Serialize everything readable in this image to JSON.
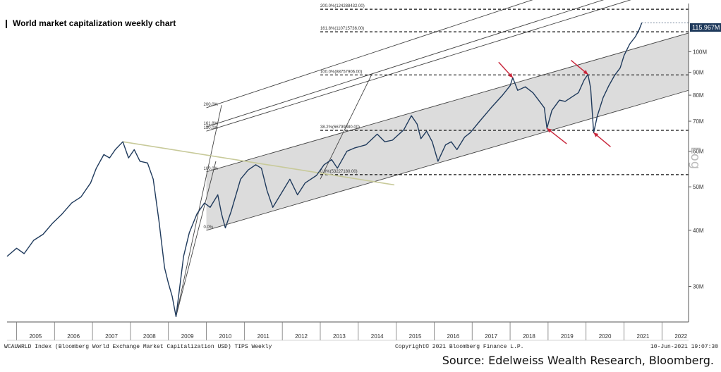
{
  "page": {
    "title": "World market capitalization weekly chart",
    "footer_left": "WCAUWRLD Index (Bloomberg World Exchange Market Capitalization USD) TIPS Weekly",
    "footer_mid": "Copyright© 2021 Bloomberg Finance L.P.",
    "footer_right": "10-Jun-2021 19:07:30",
    "source": "Source: Edelweiss Wealth Research, Bloomberg.",
    "axis_mode_label": "Log"
  },
  "chart_data": {
    "type": "line",
    "title": "World market capitalization weekly chart",
    "xlabel": "",
    "ylabel": "Log",
    "y_scale": "log",
    "ylim": [
      25000000,
      128000000
    ],
    "xlim": [
      2004.75,
      2022.7
    ],
    "x_ticks": [
      "2005",
      "2006",
      "2007",
      "2008",
      "2009",
      "2010",
      "2011",
      "2012",
      "2013",
      "2014",
      "2015",
      "2016",
      "2017",
      "2018",
      "2019",
      "2020",
      "2021",
      "2022"
    ],
    "y_ticks": [
      {
        "value": 30000000,
        "label": "30M"
      },
      {
        "value": 40000000,
        "label": "40M"
      },
      {
        "value": 50000000,
        "label": "50M"
      },
      {
        "value": 60000000,
        "label": "60M"
      },
      {
        "value": 70000000,
        "label": "70M"
      },
      {
        "value": 80000000,
        "label": "80M"
      },
      {
        "value": 90000000,
        "label": "90M"
      },
      {
        "value": 100000000,
        "label": "100M"
      }
    ],
    "last_value": {
      "value": 115967000,
      "label": "115.967M"
    },
    "series": [
      {
        "name": "WCAUWRLD Index",
        "color": "#1f3a5c",
        "points": [
          [
            2004.75,
            35000000
          ],
          [
            2005.0,
            36500000
          ],
          [
            2005.2,
            35500000
          ],
          [
            2005.45,
            38000000
          ],
          [
            2005.7,
            39200000
          ],
          [
            2005.95,
            41500000
          ],
          [
            2006.2,
            43500000
          ],
          [
            2006.45,
            46000000
          ],
          [
            2006.7,
            47500000
          ],
          [
            2006.95,
            51000000
          ],
          [
            2007.1,
            55000000
          ],
          [
            2007.3,
            59000000
          ],
          [
            2007.45,
            58000000
          ],
          [
            2007.6,
            60500000
          ],
          [
            2007.8,
            63000000
          ],
          [
            2007.95,
            58000000
          ],
          [
            2008.1,
            60500000
          ],
          [
            2008.25,
            57000000
          ],
          [
            2008.45,
            56500000
          ],
          [
            2008.6,
            52000000
          ],
          [
            2008.75,
            42000000
          ],
          [
            2008.9,
            33000000
          ],
          [
            2009.0,
            30500000
          ],
          [
            2009.1,
            28500000
          ],
          [
            2009.2,
            25700000
          ],
          [
            2009.3,
            30000000
          ],
          [
            2009.4,
            35000000
          ],
          [
            2009.55,
            39500000
          ],
          [
            2009.75,
            43500000
          ],
          [
            2009.95,
            46000000
          ],
          [
            2010.1,
            45000000
          ],
          [
            2010.3,
            48000000
          ],
          [
            2010.4,
            43500000
          ],
          [
            2010.5,
            40500000
          ],
          [
            2010.65,
            44000000
          ],
          [
            2010.9,
            52000000
          ],
          [
            2011.1,
            54500000
          ],
          [
            2011.3,
            56000000
          ],
          [
            2011.45,
            55000000
          ],
          [
            2011.6,
            49000000
          ],
          [
            2011.75,
            45000000
          ],
          [
            2011.95,
            48000000
          ],
          [
            2012.2,
            52000000
          ],
          [
            2012.4,
            48000000
          ],
          [
            2012.6,
            51000000
          ],
          [
            2012.9,
            53000000
          ],
          [
            2013.1,
            56000000
          ],
          [
            2013.3,
            57500000
          ],
          [
            2013.45,
            55000000
          ],
          [
            2013.7,
            60000000
          ],
          [
            2013.9,
            61000000
          ],
          [
            2014.2,
            62000000
          ],
          [
            2014.5,
            65500000
          ],
          [
            2014.7,
            63000000
          ],
          [
            2014.9,
            63500000
          ],
          [
            2015.2,
            67000000
          ],
          [
            2015.4,
            72000000
          ],
          [
            2015.55,
            69000000
          ],
          [
            2015.65,
            64000000
          ],
          [
            2015.8,
            66500000
          ],
          [
            2015.95,
            63000000
          ],
          [
            2016.1,
            57000000
          ],
          [
            2016.3,
            62000000
          ],
          [
            2016.45,
            63000000
          ],
          [
            2016.6,
            60500000
          ],
          [
            2016.8,
            64500000
          ],
          [
            2016.95,
            66000000
          ],
          [
            2017.2,
            70000000
          ],
          [
            2017.5,
            75000000
          ],
          [
            2017.8,
            80000000
          ],
          [
            2018.0,
            84000000
          ],
          [
            2018.07,
            87500000
          ],
          [
            2018.2,
            82000000
          ],
          [
            2018.4,
            83500000
          ],
          [
            2018.6,
            81000000
          ],
          [
            2018.75,
            78000000
          ],
          [
            2018.9,
            75000000
          ],
          [
            2018.97,
            67500000
          ],
          [
            2019.1,
            74000000
          ],
          [
            2019.3,
            78000000
          ],
          [
            2019.45,
            77500000
          ],
          [
            2019.6,
            79000000
          ],
          [
            2019.8,
            81000000
          ],
          [
            2019.95,
            86500000
          ],
          [
            2020.05,
            89000000
          ],
          [
            2020.12,
            83000000
          ],
          [
            2020.2,
            66000000
          ],
          [
            2020.3,
            72000000
          ],
          [
            2020.45,
            79000000
          ],
          [
            2020.6,
            84000000
          ],
          [
            2020.75,
            88500000
          ],
          [
            2020.9,
            92000000
          ],
          [
            2021.0,
            98000000
          ],
          [
            2021.15,
            104000000
          ],
          [
            2021.3,
            108000000
          ],
          [
            2021.4,
            112000000
          ],
          [
            2021.47,
            115967000
          ]
        ]
      },
      {
        "name": "Trend line",
        "color": "#c8ca9a",
        "points": [
          [
            2007.8,
            63000000
          ],
          [
            2014.95,
            50500000
          ]
        ]
      }
    ],
    "channel": {
      "lower": [
        [
          2010.0,
          40000000
        ],
        [
          2022.7,
          82000000
        ]
      ],
      "upper": [
        [
          2010.0,
          54000000
        ],
        [
          2022.7,
          110000000
        ]
      ],
      "fill": "#dcdcdc"
    },
    "fib_fan": [
      {
        "label": "200.0%",
        "start": [
          2010.0,
          75000000
        ],
        "end": [
          2022.7,
          170000000
        ]
      },
      {
        "label": "161.8%",
        "start": [
          2010.0,
          68000000
        ],
        "end": [
          2022.7,
          150000000
        ]
      },
      {
        "label": "150.0%",
        "start": [
          2010.0,
          66500000
        ],
        "end": [
          2022.7,
          143000000
        ]
      },
      {
        "label": "100.0%",
        "start": [
          2010.0,
          54000000
        ],
        "end": [
          2022.7,
          110000000
        ]
      },
      {
        "label": "0.0%",
        "start": [
          2010.0,
          40000000
        ],
        "end": [
          2022.7,
          82000000
        ]
      }
    ],
    "fib_levels": [
      {
        "label": "200.0%(124288432.00)",
        "value": 124288432
      },
      {
        "label": "161.8%(110715736.00)",
        "value": 110715736
      },
      {
        "label": "100.0%(88757906.00)",
        "value": 88757906
      },
      {
        "label": "38.2%(66799880.00)",
        "value": 66799880
      },
      {
        "label": "0.0%(53227180.00)",
        "value": 53227180
      }
    ],
    "annotations": [
      {
        "type": "arrow",
        "target": [
          2018.07,
          87500000
        ],
        "color": "#c8253a"
      },
      {
        "type": "arrow",
        "target": [
          2018.97,
          67500000
        ],
        "color": "#c8253a"
      },
      {
        "type": "arrow",
        "target": [
          2020.05,
          89000000
        ],
        "color": "#c8253a"
      },
      {
        "type": "arrow",
        "target": [
          2020.2,
          66000000
        ],
        "color": "#c8253a"
      }
    ]
  }
}
